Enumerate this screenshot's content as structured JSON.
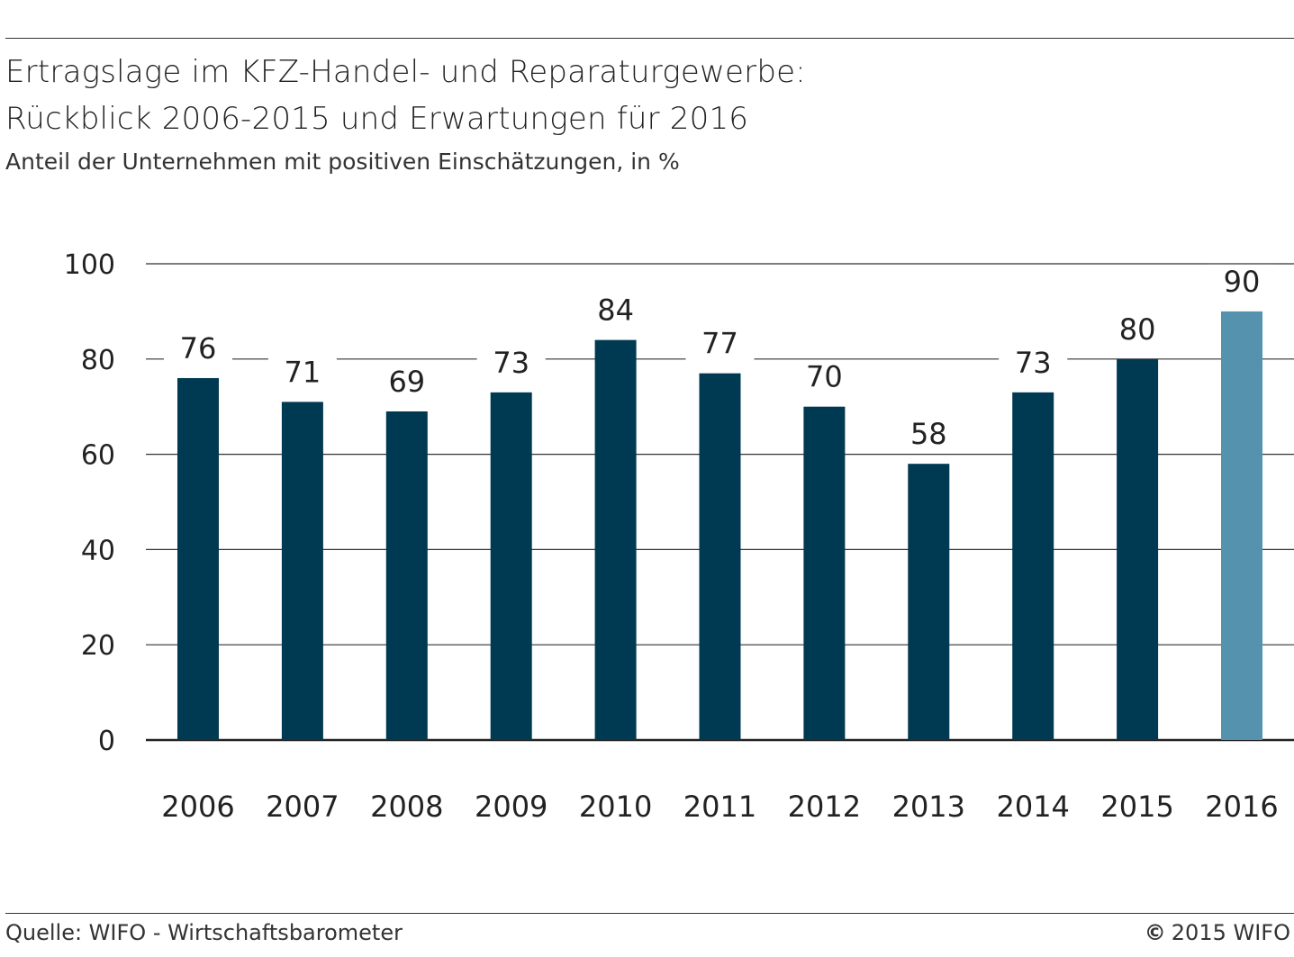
{
  "header": {
    "title_line1": "Ertragslage im KFZ-Handel- und Reparaturgewerbe:",
    "title_line2": "Rückblick 2006-2015 und Erwartungen für 2016",
    "subtitle": "Anteil der Unternehmen mit positiven Einschätzungen, in %"
  },
  "footer": {
    "source": "Quelle: WIFO - Wirtschaftsbarometer",
    "copyright_symbol": "©",
    "copyright_text": "2015 WIFO"
  },
  "chart_data": {
    "type": "bar",
    "categories": [
      "2006",
      "2007",
      "2008",
      "2009",
      "2010",
      "2011",
      "2012",
      "2013",
      "2014",
      "2015",
      "2016"
    ],
    "values": [
      76,
      71,
      69,
      73,
      84,
      77,
      70,
      58,
      73,
      80,
      90
    ],
    "data_labels": [
      "76",
      "71",
      "69",
      "73",
      "84",
      "77",
      "70",
      "58",
      "73",
      "80",
      "90"
    ],
    "yticks": [
      0,
      20,
      40,
      60,
      80,
      100
    ],
    "ylim": [
      0,
      100
    ],
    "grid": true,
    "colors": {
      "actual": "#003a52",
      "expected": "#5592ad",
      "grid": "#333333"
    },
    "highlight_index": 10
  }
}
